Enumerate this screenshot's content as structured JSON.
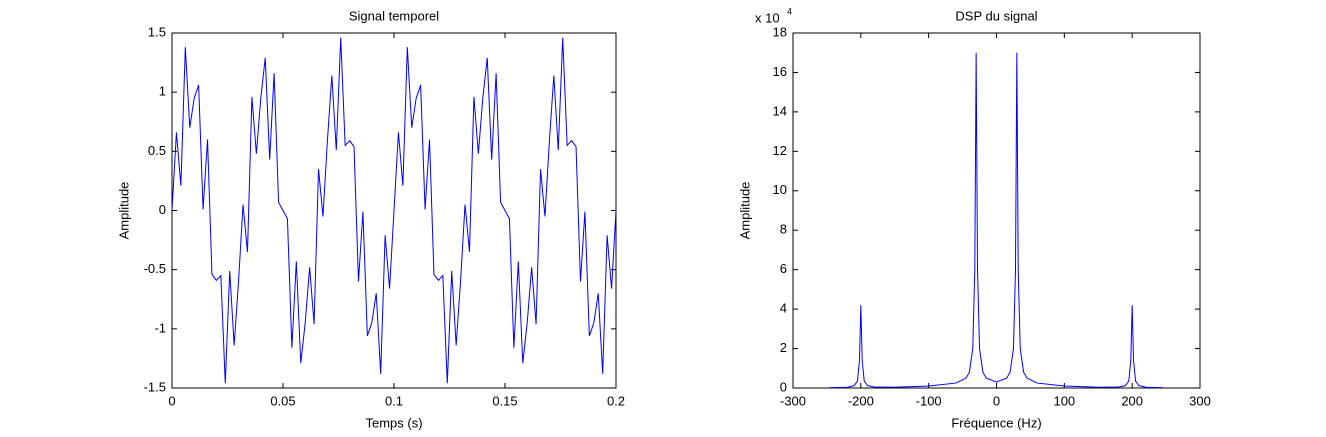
{
  "chart_data": [
    {
      "type": "line",
      "title": "Signal temporel",
      "xlabel": "Temps (s)",
      "ylabel": "Amplitude",
      "x": [
        0,
        0.002,
        0.004,
        0.006,
        0.008,
        0.01,
        0.012,
        0.014,
        0.016,
        0.018,
        0.02,
        0.022,
        0.024,
        0.026,
        0.028,
        0.03,
        0.032,
        0.034,
        0.036,
        0.038,
        0.04,
        0.042,
        0.044,
        0.046,
        0.048,
        0.05,
        0.052,
        0.054,
        0.056,
        0.058,
        0.06,
        0.062,
        0.064,
        0.066,
        0.068,
        0.07,
        0.072,
        0.074,
        0.076,
        0.078,
        0.08,
        0.082,
        0.084,
        0.086,
        0.088,
        0.09,
        0.092,
        0.094,
        0.096,
        0.098,
        0.1,
        0.102,
        0.104,
        0.106,
        0.108,
        0.11,
        0.112,
        0.114,
        0.116,
        0.118,
        0.12,
        0.122,
        0.124,
        0.126,
        0.128,
        0.13,
        0.132,
        0.134,
        0.136,
        0.138,
        0.14,
        0.142,
        0.144,
        0.146,
        0.148,
        0.15,
        0.152,
        0.154,
        0.156,
        0.158,
        0.16,
        0.162,
        0.164,
        0.166,
        0.168,
        0.17,
        0.172,
        0.174,
        0.176,
        0.178,
        0.18,
        0.182,
        0.184,
        0.186,
        0.188,
        0.19,
        0.192,
        0.194,
        0.196,
        0.198,
        0.2
      ],
      "series": [
        {
          "name": "signal",
          "color": "#0000ff",
          "values": [
            0,
            0.66,
            0.21,
            1.38,
            0.7,
            0.95,
            1.06,
            0.01,
            0.6,
            -0.54,
            -0.59,
            -0.55,
            -1.46,
            -0.51,
            -1.14,
            -0.59,
            0.05,
            -0.35,
            0.96,
            0.48,
            0.95,
            1.29,
            0.43,
            1.16,
            0.07,
            0,
            -0.07,
            -1.16,
            -0.43,
            -1.29,
            -0.95,
            -0.48,
            -0.96,
            0.35,
            -0.05,
            0.59,
            1.14,
            0.51,
            1.46,
            0.55,
            0.59,
            0.54,
            -0.6,
            -0.01,
            -1.06,
            -0.95,
            -0.7,
            -1.38,
            -0.21,
            -0.66,
            0,
            0.66,
            0.21,
            1.38,
            0.7,
            0.95,
            1.06,
            0.01,
            0.6,
            -0.54,
            -0.59,
            -0.55,
            -1.46,
            -0.51,
            -1.14,
            -0.59,
            0.05,
            -0.35,
            0.96,
            0.48,
            0.95,
            1.29,
            0.43,
            1.16,
            0.07,
            0,
            -0.07,
            -1.16,
            -0.43,
            -1.29,
            -0.95,
            -0.48,
            -0.96,
            0.35,
            -0.05,
            0.59,
            1.14,
            0.51,
            1.46,
            0.55,
            0.59,
            0.54,
            -0.6,
            -0.01,
            -1.06,
            -0.95,
            -0.7,
            -1.38,
            -0.21,
            -0.66,
            0
          ]
        }
      ],
      "xlim": [
        0,
        0.2
      ],
      "xticks": [
        0,
        0.05,
        0.1,
        0.15,
        0.2
      ],
      "ylim": [
        -1.5,
        1.5
      ],
      "yticks": [
        -1.5,
        -1,
        -0.5,
        0,
        0.5,
        1,
        1.5
      ],
      "grid": false
    },
    {
      "type": "line",
      "title": "DSP du signal",
      "xlabel": "Fréquence (Hz)",
      "ylabel": "Amplitude",
      "y_multiplier": {
        "base": "x 10",
        "exponent": "4"
      },
      "x": [
        -245,
        -220,
        -210,
        -205,
        -202,
        -200,
        -198,
        -195,
        -190,
        -180,
        -150,
        -100,
        -60,
        -45,
        -40,
        -35,
        -32,
        -30,
        -28,
        -25,
        -20,
        -15,
        0,
        15,
        20,
        25,
        28,
        30,
        32,
        35,
        40,
        45,
        60,
        100,
        150,
        180,
        190,
        195,
        198,
        200,
        202,
        205,
        210,
        220,
        245
      ],
      "series": [
        {
          "name": "DSP",
          "color": "#0000ff",
          "values": [
            200,
            400,
            1200,
            3500,
            14000,
            42000,
            14000,
            3500,
            1200,
            500,
            400,
            1000,
            2500,
            5000,
            8000,
            20000,
            60000,
            170000,
            60000,
            20000,
            8000,
            5000,
            3000,
            5000,
            8000,
            20000,
            60000,
            170000,
            60000,
            20000,
            8000,
            5000,
            2500,
            1000,
            400,
            500,
            1200,
            3500,
            14000,
            42000,
            14000,
            3500,
            1200,
            400,
            200
          ]
        }
      ],
      "xlim": [
        -300,
        300
      ],
      "xticks": [
        -300,
        -200,
        -100,
        0,
        100,
        200,
        300
      ],
      "ylim": [
        0,
        180000
      ],
      "yticks": [
        {
          "value": 0,
          "label": "0"
        },
        {
          "value": 20000,
          "label": "2"
        },
        {
          "value": 40000,
          "label": "4"
        },
        {
          "value": 60000,
          "label": "6"
        },
        {
          "value": 80000,
          "label": "8"
        },
        {
          "value": 100000,
          "label": "10"
        },
        {
          "value": 120000,
          "label": "12"
        },
        {
          "value": 140000,
          "label": "14"
        },
        {
          "value": 160000,
          "label": "16"
        },
        {
          "value": 180000,
          "label": "18"
        }
      ],
      "grid": false
    }
  ]
}
